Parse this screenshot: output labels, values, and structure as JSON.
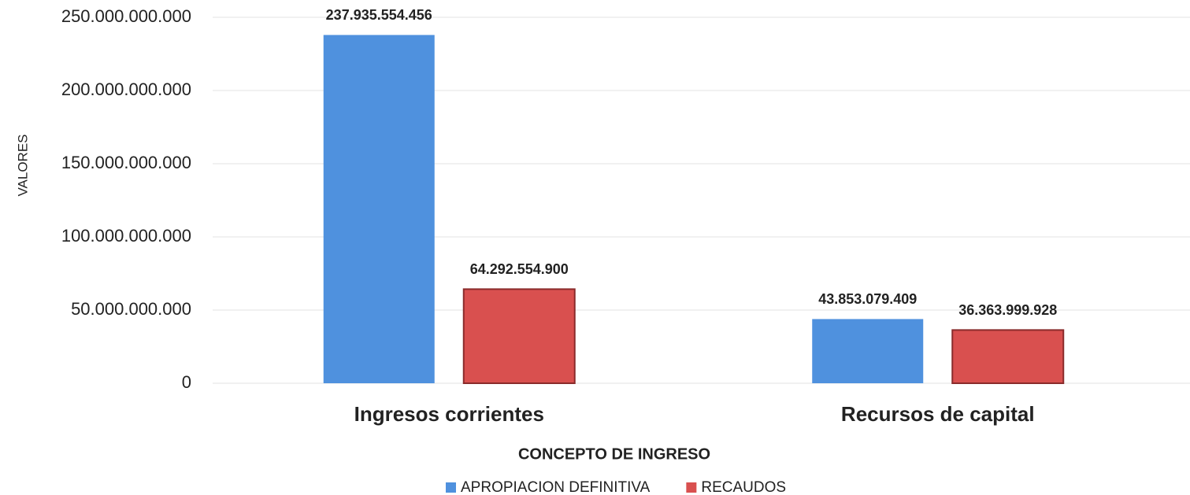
{
  "chart_data": {
    "type": "bar",
    "x_label": "CONCEPTO DE INGRESO",
    "y_label": "VALORES",
    "categories": [
      "Ingresos corrientes",
      "Recursos de capital"
    ],
    "series": [
      {
        "name": "APROPIACION DEFINITIVA",
        "color": "#4f91de",
        "values": [
          237935554456,
          43853079409
        ],
        "value_labels": [
          "237.935.554.456",
          "43.853.079.409"
        ]
      },
      {
        "name": "RECAUDOS",
        "color": "#d9504f",
        "values": [
          64292554900,
          36363999928
        ],
        "value_labels": [
          "64.292.554.900",
          "36.363.999.928"
        ]
      }
    ],
    "ylim": [
      0,
      250000000000
    ],
    "yticks": [
      0,
      {
        "value": 50000000000,
        "label": "50.000.000.000"
      },
      {
        "value": 100000000000,
        "label": "100.000.000.000"
      },
      {
        "value": 150000000000,
        "label": "150.000.000.000"
      },
      {
        "value": 200000000000,
        "label": "200.000.000.000"
      },
      {
        "value": 250000000000,
        "label": "250.000.000.000"
      }
    ],
    "grid": true,
    "legend": "bottom"
  }
}
